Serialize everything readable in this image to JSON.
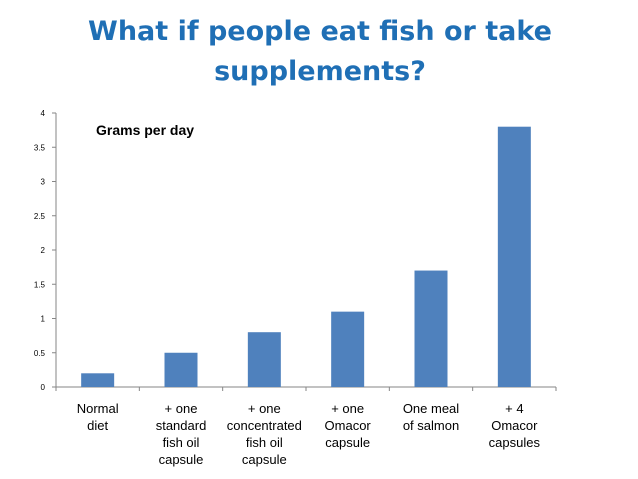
{
  "title_lines": [
    "What if people eat fish or take",
    "supplements?"
  ],
  "chart_data": {
    "type": "bar",
    "annotation": "Grams per day",
    "categories": [
      "Normal\ndiet",
      "+ one\nstandard\nfish oil\ncapsule",
      "+ one\nconcentrated\nfish oil\ncapsule",
      "+ one\nOmacor\ncapsule",
      "One meal\nof salmon",
      "+ 4\nOmacor\ncapsules"
    ],
    "values": [
      0.2,
      0.5,
      0.8,
      1.1,
      1.7,
      3.8
    ],
    "ylim": [
      0,
      4
    ],
    "yticks": [
      "0",
      "0.5",
      "1",
      "1.5",
      "2",
      "2.5",
      "3",
      "3.5",
      "4"
    ],
    "grid": false,
    "bar_color": "#4f81bd",
    "title_color": "#1f6fb5"
  }
}
